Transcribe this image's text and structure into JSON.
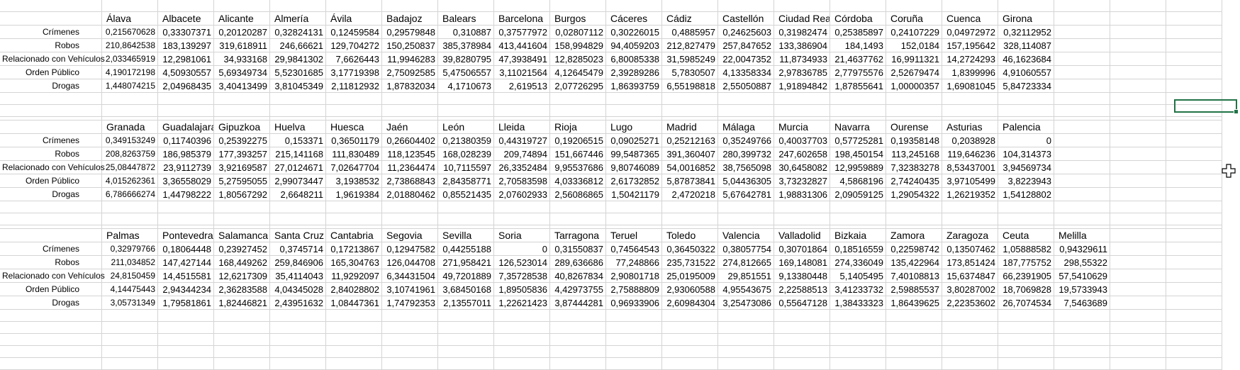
{
  "sheet": {
    "blocks": [
      {
        "headers": [
          "Álava",
          "Albacete",
          "Alicante",
          "Almería",
          "Ávila",
          "Badajoz",
          "Balears",
          "Barcelona",
          "Burgos",
          "Cáceres",
          "Cádiz",
          "Castellón",
          "Ciudad Real",
          "Córdoba",
          "Coruña",
          "Cuenca",
          "Girona"
        ],
        "rows": [
          {
            "label": "Crímenes",
            "values": [
              "0,215670628",
              "0,33307371",
              "0,20120287",
              "0,32824131",
              "0,12459584",
              "0,29579848",
              "0,310887",
              "0,37577972",
              "0,02807112",
              "0,30226015",
              "0,4885957",
              "0,24625603",
              "0,31982474",
              "0,25385897",
              "0,24107229",
              "0,04972972",
              "0,32112952"
            ]
          },
          {
            "label": "Robos",
            "values": [
              "210,8642538",
              "183,139297",
              "319,618911",
              "246,66621",
              "129,704272",
              "150,250837",
              "385,378984",
              "413,441604",
              "158,994829",
              "94,4059203",
              "212,827479",
              "257,847652",
              "133,386904",
              "184,1493",
              "152,0184",
              "157,195642",
              "328,114087"
            ]
          },
          {
            "label": "Relacionado con Vehículos",
            "values": [
              "2,033465919",
              "12,2981061",
              "34,933168",
              "29,9841302",
              "7,6626443",
              "11,9946283",
              "39,8280795",
              "47,3938491",
              "12,8285023",
              "6,80085338",
              "31,5985249",
              "22,0047352",
              "11,8734933",
              "21,4637762",
              "16,9911321",
              "14,2724293",
              "46,1623684"
            ]
          },
          {
            "label": "Orden Público",
            "values": [
              "4,190172198",
              "4,50930557",
              "5,69349734",
              "5,52301685",
              "3,17719398",
              "2,75092585",
              "5,47506557",
              "3,11021564",
              "4,12645479",
              "2,39289286",
              "5,7830507",
              "4,13358334",
              "2,97836785",
              "2,77975576",
              "2,52679474",
              "1,8399996",
              "4,91060557"
            ]
          },
          {
            "label": "Drogas",
            "values": [
              "1,448074215",
              "2,04968435",
              "3,40413499",
              "3,81045349",
              "2,11812932",
              "1,87832034",
              "4,1710673",
              "2,619513",
              "2,07726295",
              "1,86393759",
              "6,55198818",
              "2,55050887",
              "1,91894842",
              "1,87855641",
              "1,00000357",
              "1,69081045",
              "5,84723334"
            ]
          }
        ]
      },
      {
        "headers": [
          "Granada",
          "Guadalajara",
          "Gipuzkoa",
          "Huelva",
          "Huesca",
          "Jaén",
          "León",
          "Lleida",
          "Rioja",
          "Lugo",
          "Madrid",
          "Málaga",
          "Murcia",
          "Navarra",
          "Ourense",
          "Asturias",
          "Palencia"
        ],
        "rows": [
          {
            "label": "Crímenes",
            "values": [
              "0,349153249",
              "0,11740396",
              "0,25392275",
              "0,153371",
              "0,36501179",
              "0,26604402",
              "0,21380359",
              "0,44319727",
              "0,19206515",
              "0,09025271",
              "0,25212163",
              "0,35249766",
              "0,40037703",
              "0,57725281",
              "0,19358148",
              "0,2038928",
              "0"
            ]
          },
          {
            "label": "Robos",
            "values": [
              "208,8263759",
              "186,985379",
              "177,393257",
              "215,141168",
              "111,830489",
              "118,123545",
              "168,028239",
              "209,74894",
              "151,667446",
              "99,5487365",
              "391,360407",
              "280,399732",
              "247,602658",
              "198,450154",
              "113,245168",
              "119,646236",
              "104,314373"
            ]
          },
          {
            "label": "Relacionado con Vehículos",
            "values": [
              "25,08447872",
              "23,9112739",
              "3,92169587",
              "27,0124671",
              "7,02647704",
              "11,2364474",
              "10,7115597",
              "26,3352484",
              "9,95537686",
              "9,80746089",
              "54,0016852",
              "38,7565098",
              "30,6458082",
              "12,9959889",
              "7,32383278",
              "8,53437001",
              "3,94569734"
            ]
          },
          {
            "label": "Orden Público",
            "values": [
              "4,015262361",
              "3,36558029",
              "5,27595055",
              "2,99073447",
              "3,1938532",
              "2,73868843",
              "2,84358771",
              "2,70583598",
              "4,03336812",
              "2,61732852",
              "5,87873841",
              "5,04436305",
              "3,73232827",
              "4,5868196",
              "2,74240435",
              "3,97105499",
              "3,8223943"
            ]
          },
          {
            "label": "Drogas",
            "values": [
              "6,786666274",
              "1,44798222",
              "1,80567292",
              "2,6648211",
              "1,9619384",
              "2,01880462",
              "0,85521435",
              "2,07602933",
              "2,56086865",
              "1,50421179",
              "2,4720218",
              "5,67642781",
              "1,98831306",
              "2,09059125",
              "1,29054322",
              "1,26219352",
              "1,54128802"
            ]
          }
        ]
      },
      {
        "headers": [
          "Palmas",
          "Pontevedra",
          "Salamanca",
          "Santa Cruz",
          "Cantabria",
          "Segovia",
          "Sevilla",
          "Soria",
          "Tarragona",
          "Teruel",
          "Toledo",
          "Valencia",
          "Valladolid",
          "Bizkaia",
          "Zamora",
          "Zaragoza",
          "Ceuta",
          "Melilla"
        ],
        "rows": [
          {
            "label": "Crímenes",
            "values": [
              "0,32979766",
              "0,18064448",
              "0,23927452",
              "0,3745714",
              "0,17213867",
              "0,12947582",
              "0,44255188",
              "0",
              "0,31550837",
              "0,74564543",
              "0,36450322",
              "0,38057754",
              "0,30701864",
              "0,18516559",
              "0,22598742",
              "0,13507462",
              "1,05888582",
              "0,94329611"
            ]
          },
          {
            "label": "Robos",
            "values": [
              "211,034852",
              "147,427144",
              "168,449262",
              "259,846906",
              "165,304763",
              "126,044708",
              "271,958421",
              "126,523014",
              "289,636686",
              "77,248866",
              "235,731522",
              "274,812665",
              "169,148081",
              "274,336049",
              "135,422964",
              "173,851424",
              "187,775752",
              "298,55322"
            ]
          },
          {
            "label": "Relacionado con Vehículos",
            "values": [
              "24,8150459",
              "14,4515581",
              "12,6217309",
              "35,4114043",
              "11,9292097",
              "6,34431504",
              "49,7201889",
              "7,35728538",
              "40,8267834",
              "2,90801718",
              "25,0195009",
              "29,851551",
              "9,13380448",
              "5,1405495",
              "7,40108813",
              "15,6374847",
              "66,2391905",
              "57,5410629"
            ]
          },
          {
            "label": "Orden Público",
            "values": [
              "4,14475443",
              "2,94344234",
              "2,36283588",
              "4,04345028",
              "2,84028802",
              "3,10741961",
              "3,68450168",
              "1,89505836",
              "4,42973755",
              "2,75888809",
              "2,93060588",
              "4,95543675",
              "2,22588513",
              "3,41233732",
              "2,59885537",
              "3,80287002",
              "18,7069828",
              "19,5733943"
            ]
          },
          {
            "label": "Drogas",
            "values": [
              "3,05731349",
              "1,79581861",
              "1,82446821",
              "2,43951632",
              "1,08447361",
              "1,74792353",
              "2,13557011",
              "1,22621423",
              "3,87444281",
              "0,96933906",
              "2,60984304",
              "3,25473086",
              "0,55647128",
              "1,38433323",
              "1,86439625",
              "2,22353602",
              "26,7074534",
              "7,5463689"
            ]
          }
        ]
      }
    ],
    "colors": {
      "gridline": "#d4d4d4",
      "selection": "#217346",
      "background": "#ffffff",
      "text": "#000000"
    },
    "cursor_icon": "move-cursor-icon"
  }
}
